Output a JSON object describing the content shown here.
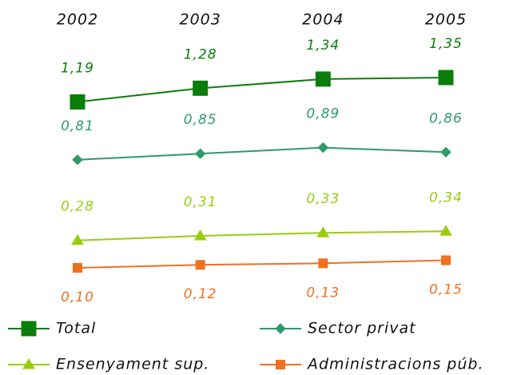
{
  "chart_data": {
    "type": "line",
    "categories": [
      "2002",
      "2003",
      "2004",
      "2005"
    ],
    "series": [
      {
        "name": "Total",
        "color": "#0b7d0b",
        "marker": "square",
        "values": [
          1.19,
          1.28,
          1.34,
          1.35
        ],
        "value_labels": [
          "1,19",
          "1,28",
          "1,34",
          "1,35"
        ]
      },
      {
        "name": "Sector privat",
        "color": "#2e9a6a",
        "marker": "diamond",
        "values": [
          0.81,
          0.85,
          0.89,
          0.86
        ],
        "value_labels": [
          "0,81",
          "0,85",
          "0,89",
          "0,86"
        ]
      },
      {
        "name": "Ensenyament sup.",
        "color": "#99cc11",
        "marker": "triangle",
        "values": [
          0.28,
          0.31,
          0.33,
          0.34
        ],
        "value_labels": [
          "0,28",
          "0,31",
          "0,33",
          "0,34"
        ]
      },
      {
        "name": "Administracions púb.",
        "color": "#f07020",
        "marker": "square-small",
        "values": [
          0.1,
          0.12,
          0.13,
          0.15
        ],
        "value_labels": [
          "0,10",
          "0,12",
          "0,13",
          "0,15"
        ]
      }
    ],
    "legend": "bottom"
  }
}
